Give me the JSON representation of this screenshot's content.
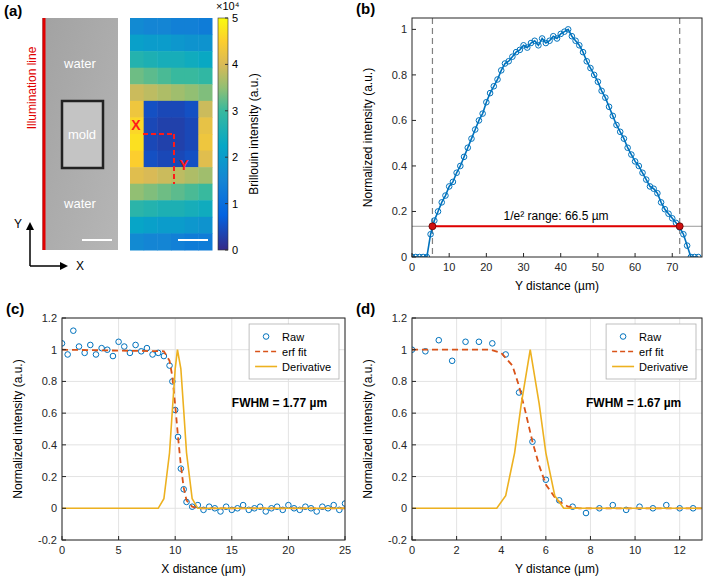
{
  "chart_data": [
    {
      "type": "heatmap",
      "panel_label": "(a)",
      "image_labels": [
        "water",
        "mold",
        "water"
      ],
      "illumination_label": "Illumination line",
      "axis_arrows": [
        "X",
        "Y"
      ],
      "profile_labels": [
        "X",
        "Y"
      ],
      "colorbar": {
        "label": "Brillouin intensity (a.u.)",
        "range": [
          0,
          5
        ],
        "ticks": [
          0,
          1,
          2,
          3,
          4,
          5
        ],
        "multiplier": "×10⁴"
      },
      "cells": [
        [
          1.6,
          1.5,
          1.5,
          1.4,
          1.4,
          1.3
        ],
        [
          2.1,
          2.0,
          2.0,
          1.9,
          1.8,
          1.8
        ],
        [
          2.7,
          2.6,
          2.5,
          2.5,
          2.4,
          2.3
        ],
        [
          3.3,
          3.2,
          3.1,
          3.0,
          3.0,
          2.9
        ],
        [
          3.9,
          3.8,
          3.7,
          3.6,
          3.5,
          3.4
        ],
        [
          4.3,
          0.5,
          0.4,
          0.4,
          0.5,
          3.9
        ],
        [
          4.6,
          0.4,
          0.3,
          0.3,
          0.4,
          4.2
        ],
        [
          4.7,
          0.4,
          0.3,
          0.3,
          0.4,
          4.3
        ],
        [
          4.5,
          0.5,
          0.4,
          0.4,
          0.5,
          4.1
        ],
        [
          4.1,
          4.0,
          3.9,
          3.8,
          3.7,
          3.6
        ],
        [
          3.5,
          3.4,
          3.3,
          3.2,
          3.1,
          3.0
        ],
        [
          2.8,
          2.7,
          2.6,
          2.6,
          2.5,
          2.4
        ],
        [
          2.2,
          2.1,
          2.0,
          2.0,
          1.9,
          1.8
        ],
        [
          1.6,
          1.5,
          1.5,
          1.4,
          1.3,
          1.3
        ]
      ]
    },
    {
      "type": "line",
      "panel_label": "(b)",
      "x_label": "Y distance (µm)",
      "y_label": "Normalized intensity (a.u.)",
      "xlim": [
        0,
        78
      ],
      "ylim": [
        0,
        1.05
      ],
      "xticks": [
        0,
        10,
        20,
        30,
        40,
        50,
        60,
        70
      ],
      "yticks": [
        0,
        0.2,
        0.4,
        0.6,
        0.8,
        1
      ],
      "grid": false,
      "vlines": [
        5.5,
        72
      ],
      "hline": 0.135,
      "annotation": "1/e² range: 66.5 µm",
      "series": [
        {
          "type": "line",
          "color": "#0072bd",
          "marker": "o",
          "line_style": "solid",
          "x": [
            0,
            1,
            2,
            3,
            4,
            5,
            6,
            7,
            8,
            9,
            10,
            11,
            12,
            13,
            14,
            15,
            16,
            17,
            18,
            19,
            20,
            21,
            22,
            23,
            24,
            25,
            26,
            27,
            28,
            29,
            30,
            31,
            32,
            33,
            34,
            35,
            36,
            37,
            38,
            39,
            40,
            41,
            42,
            43,
            44,
            45,
            46,
            47,
            48,
            49,
            50,
            51,
            52,
            53,
            54,
            55,
            56,
            57,
            58,
            59,
            60,
            61,
            62,
            63,
            64,
            65,
            66,
            67,
            68,
            69,
            70,
            71,
            72,
            73,
            74,
            75,
            76,
            77
          ],
          "values": [
            0,
            0,
            0,
            0,
            0,
            0.1,
            0.16,
            0.2,
            0.24,
            0.27,
            0.31,
            0.33,
            0.37,
            0.4,
            0.44,
            0.48,
            0.52,
            0.56,
            0.6,
            0.63,
            0.68,
            0.72,
            0.75,
            0.78,
            0.82,
            0.85,
            0.86,
            0.88,
            0.9,
            0.91,
            0.93,
            0.92,
            0.94,
            0.95,
            0.93,
            0.96,
            0.94,
            0.95,
            0.97,
            0.96,
            0.98,
            0.99,
            1.0,
            0.97,
            0.95,
            0.93,
            0.9,
            0.86,
            0.83,
            0.8,
            0.77,
            0.73,
            0.7,
            0.66,
            0.62,
            0.58,
            0.55,
            0.52,
            0.48,
            0.45,
            0.42,
            0.4,
            0.37,
            0.34,
            0.31,
            0.3,
            0.28,
            0.24,
            0.21,
            0.19,
            0.17,
            0.15,
            0.13,
            0.1,
            0.05,
            0,
            0,
            0
          ]
        }
      ]
    },
    {
      "type": "line",
      "panel_label": "(c)",
      "x_label": "X distance (µm)",
      "y_label": "Normalized intensity (a.u.)",
      "xlim": [
        0,
        25
      ],
      "ylim": [
        -0.2,
        1.2
      ],
      "xticks": [
        0,
        5,
        10,
        15,
        20,
        25
      ],
      "yticks": [
        -0.2,
        0,
        0.2,
        0.4,
        0.6,
        0.8,
        1,
        1.2
      ],
      "grid": true,
      "legend": "northeast",
      "annotation": "FWHM = 1.77 µm",
      "series": [
        {
          "name": "Raw",
          "type": "scatter",
          "color": "#0072bd",
          "marker": "o",
          "x": [
            0,
            0.5,
            1,
            1.5,
            2,
            2.5,
            3,
            3.5,
            4,
            4.5,
            5,
            5.5,
            6,
            6.5,
            7,
            7.5,
            8,
            8.5,
            9,
            9.5,
            9.75,
            10,
            10.25,
            10.5,
            10.75,
            11,
            11.5,
            12,
            12.5,
            13,
            13.5,
            14,
            14.5,
            15,
            15.5,
            16,
            16.5,
            17,
            17.5,
            18,
            18.5,
            19,
            19.5,
            20,
            20.5,
            21,
            21.5,
            22,
            22.5,
            23,
            23.5,
            24,
            24.5,
            25
          ],
          "values": [
            1.04,
            0.97,
            1.12,
            1.02,
            0.98,
            1.03,
            0.97,
            1.01,
            1.0,
            0.96,
            1.05,
            1.02,
            0.98,
            1.03,
            0.99,
            1.01,
            0.97,
            0.98,
            0.96,
            0.9,
            0.8,
            0.62,
            0.45,
            0.25,
            0.12,
            0.04,
            0.01,
            0.02,
            -0.01,
            0.01,
            0.0,
            -0.02,
            0.01,
            -0.01,
            0.0,
            0.02,
            -0.01,
            0.0,
            0.01,
            -0.02,
            0.0,
            0.01,
            -0.01,
            0.02,
            0.0,
            -0.01,
            0.01,
            0.0,
            -0.02,
            0.01,
            0.0,
            0.02,
            -0.01,
            0.03
          ]
        },
        {
          "name": "erf fit",
          "type": "line",
          "color": "#d95319",
          "line_style": "dashed",
          "x": [
            0,
            9,
            9.5,
            9.75,
            10,
            10.25,
            10.5,
            10.75,
            11,
            11.5,
            12,
            25
          ],
          "values": [
            1,
            0.99,
            0.93,
            0.83,
            0.65,
            0.45,
            0.27,
            0.13,
            0.05,
            0.01,
            0,
            0
          ]
        },
        {
          "name": "Derivative",
          "type": "line",
          "color": "#edb120",
          "line_style": "solid",
          "x": [
            0,
            8.5,
            9,
            9.5,
            9.75,
            10,
            10.2,
            10.5,
            10.75,
            11,
            11.5,
            12,
            25
          ],
          "values": [
            0,
            0,
            0.06,
            0.35,
            0.62,
            0.88,
            1,
            0.88,
            0.62,
            0.35,
            0.06,
            0,
            0
          ]
        }
      ]
    },
    {
      "type": "line",
      "panel_label": "(d)",
      "x_label": "Y distance (µm)",
      "y_label": "Normalized intensity (a.u.)",
      "xlim": [
        0,
        13
      ],
      "ylim": [
        -0.2,
        1.2
      ],
      "xticks": [
        0,
        2,
        4,
        6,
        8,
        10,
        12
      ],
      "yticks": [
        -0.2,
        0,
        0.2,
        0.4,
        0.6,
        0.8,
        1,
        1.2
      ],
      "grid": true,
      "legend": "northeast",
      "annotation": "FWHM = 1.67 µm",
      "series": [
        {
          "name": "Raw",
          "type": "scatter",
          "color": "#0072bd",
          "marker": "o",
          "x": [
            0,
            0.6,
            1.2,
            1.8,
            2.4,
            3.0,
            3.6,
            4.2,
            4.8,
            5.4,
            6.0,
            6.6,
            7.2,
            7.8,
            8.4,
            9.0,
            9.6,
            10.2,
            10.8,
            11.4,
            12.0,
            12.6
          ],
          "values": [
            1.0,
            0.99,
            1.06,
            0.93,
            1.05,
            1.05,
            1.04,
            0.97,
            0.73,
            0.42,
            0.18,
            0.05,
            0.01,
            -0.03,
            0.0,
            0.02,
            -0.01,
            0.01,
            0.0,
            0.02,
            0.0,
            0.0
          ]
        },
        {
          "name": "erf fit",
          "type": "line",
          "color": "#d95319",
          "line_style": "dashed",
          "x": [
            0,
            3.5,
            4,
            4.5,
            4.8,
            5.1,
            5.4,
            5.7,
            6,
            6.5,
            7,
            7.5,
            13
          ],
          "values": [
            1,
            1,
            0.98,
            0.9,
            0.77,
            0.6,
            0.42,
            0.27,
            0.15,
            0.05,
            0.01,
            0,
            0
          ]
        },
        {
          "name": "Derivative",
          "type": "line",
          "color": "#edb120",
          "line_style": "solid",
          "x": [
            0,
            3.8,
            4.2,
            4.6,
            4.9,
            5.3,
            5.7,
            6,
            6.4,
            6.8,
            13
          ],
          "values": [
            0,
            0,
            0.08,
            0.35,
            0.66,
            1,
            0.66,
            0.35,
            0.08,
            0,
            0
          ]
        }
      ]
    }
  ]
}
